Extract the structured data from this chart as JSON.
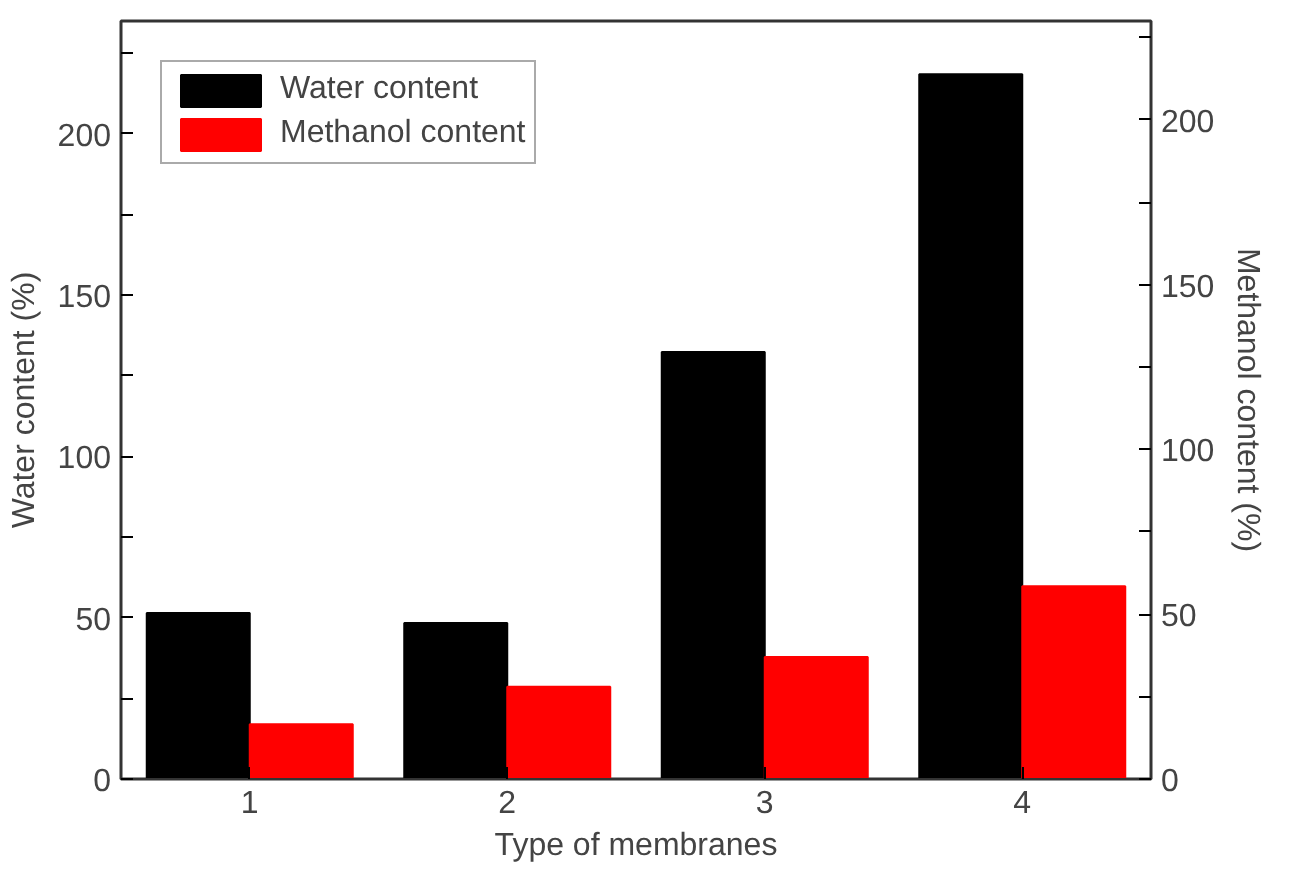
{
  "chart_data": {
    "type": "bar",
    "xlabel": "Type of membranes",
    "ylabel": "Water content (%)",
    "y2label": "Methanol content (%)",
    "categories": [
      "1",
      "2",
      "3",
      "4"
    ],
    "series": [
      {
        "name": "Water content",
        "color": "#000000",
        "values": [
          51.5,
          48.4,
          132.4,
          218.5
        ]
      },
      {
        "name": "Methanol content",
        "color": "#ff0000",
        "values": [
          16.6,
          28.0,
          37.0,
          58.5
        ],
        "axis": "y2"
      }
    ],
    "ylim": [
      0,
      235
    ],
    "yticks": [
      0,
      {
        "value": 25,
        "label": null
      },
      50,
      {
        "value": 75,
        "label": null
      },
      100,
      {
        "value": 125,
        "label": null
      },
      150,
      {
        "value": 175,
        "label": null
      },
      200,
      {
        "value": 225,
        "label": null
      }
    ],
    "y2lim": [
      0,
      230
    ],
    "y2ticks": [
      0,
      {
        "value": 25,
        "label": null
      },
      50,
      {
        "value": 75,
        "label": null
      },
      100,
      {
        "value": 125,
        "label": null
      },
      150,
      {
        "value": 175,
        "label": null
      },
      200,
      {
        "value": 225,
        "label": null
      }
    ],
    "legend": "top left",
    "grid": false
  }
}
